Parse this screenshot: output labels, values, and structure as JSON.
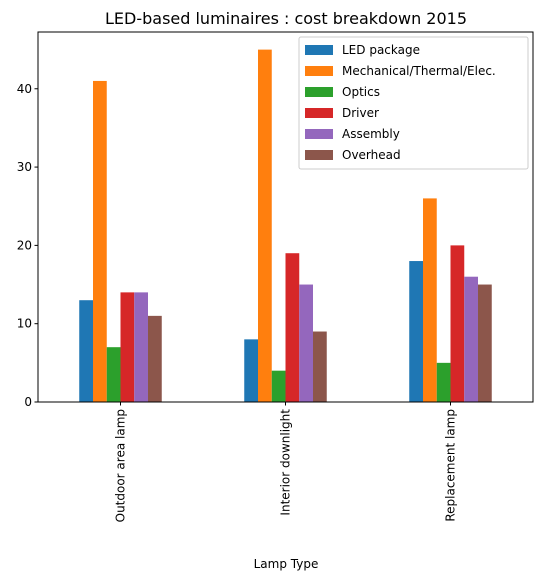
{
  "chart_data": {
    "type": "bar",
    "title": "LED-based luminaires : cost breakdown 2015",
    "xlabel": "Lamp Type",
    "ylabel": "",
    "categories": [
      "Outdoor area lamp",
      "Interior downlight",
      "Replacement lamp"
    ],
    "series": [
      {
        "name": "LED package",
        "color": "#1f77b4",
        "values": [
          13,
          8,
          18
        ]
      },
      {
        "name": "Mechanical/Thermal/Elec.",
        "color": "#ff7f0e",
        "values": [
          41,
          45,
          26
        ]
      },
      {
        "name": "Optics",
        "color": "#2ca02c",
        "values": [
          7,
          4,
          5
        ]
      },
      {
        "name": "Driver",
        "color": "#d62728",
        "values": [
          14,
          19,
          20
        ]
      },
      {
        "name": "Assembly",
        "color": "#9467bd",
        "values": [
          14,
          15,
          16
        ]
      },
      {
        "name": "Overhead",
        "color": "#8c564b",
        "values": [
          11,
          9,
          15
        ]
      }
    ],
    "ylim": [
      0,
      47.25
    ],
    "yticks": [
      0,
      10,
      20,
      30,
      40
    ],
    "grid": false,
    "legend_position": "top-right"
  }
}
